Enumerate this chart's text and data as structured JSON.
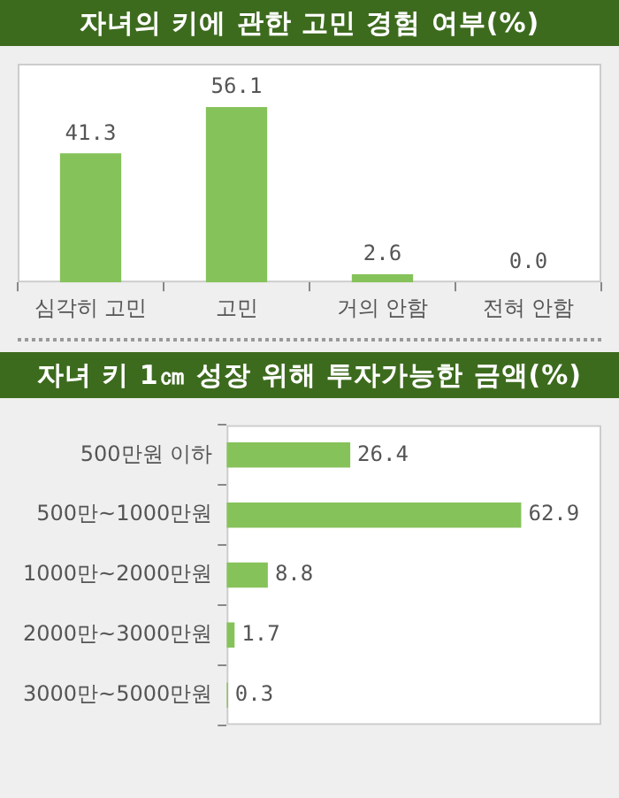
{
  "chart_data": [
    {
      "type": "bar",
      "title": "자녀의 키에 관한 고민 경험 여부(%)",
      "categories": [
        "심각히 고민",
        "고민",
        "거의 안함",
        "전혀 안함"
      ],
      "values": [
        41.3,
        56.1,
        2.6,
        0.0
      ],
      "value_labels": [
        "41.3",
        "56.1",
        "2.6",
        "0.0"
      ],
      "color": "#86c25a",
      "tick_labels": "x"
    },
    {
      "type": "bar",
      "orientation": "horizontal",
      "title": "자녀 키 1㎝ 성장 위해 투자가능한 금액(%)",
      "categories": [
        "500만원 이하",
        "500만~1000만원",
        "1000만~2000만원",
        "2000만~3000만원",
        "3000만~5000만원"
      ],
      "values": [
        26.4,
        62.9,
        8.8,
        1.7,
        0.3
      ],
      "value_labels": [
        "26.4",
        "62.9",
        "8.8",
        "1.7",
        "0.3"
      ],
      "color": "#86c25a",
      "tick_labels": "y"
    }
  ]
}
